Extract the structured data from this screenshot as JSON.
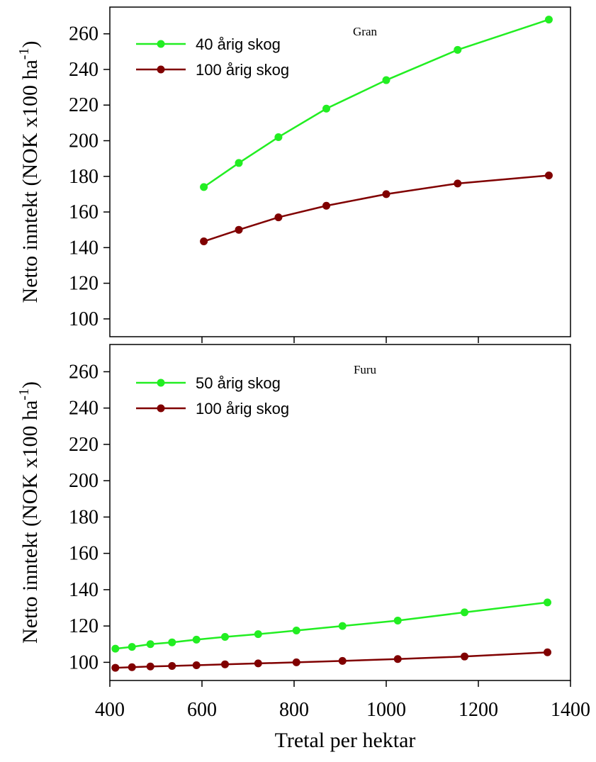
{
  "chart_data": [
    {
      "type": "line",
      "title": "Gran",
      "ylabel": "Netto inntekt (NOK x100 ha",
      "ylabel_sup": "-1",
      "ylabel_close": ")",
      "xlabel": "",
      "xlim": [
        400,
        1400
      ],
      "ylim": [
        90,
        275
      ],
      "yticks": [
        100,
        120,
        140,
        160,
        180,
        200,
        220,
        240,
        260
      ],
      "xticks": [
        600,
        800,
        1000,
        1200
      ],
      "legend": "top-left",
      "series": [
        {
          "name": "40 årig skog",
          "color": "#22ee22",
          "x": [
            604,
            680,
            766,
            870,
            1000,
            1155,
            1353
          ],
          "y": [
            174,
            187.5,
            202,
            218,
            234,
            251,
            268
          ]
        },
        {
          "name": "100 årig skog",
          "color": "#800000",
          "x": [
            604,
            680,
            766,
            870,
            1000,
            1155,
            1353
          ],
          "y": [
            143.5,
            150,
            157,
            163.5,
            170,
            176,
            180.5
          ]
        }
      ]
    },
    {
      "type": "line",
      "title": "Furu",
      "ylabel": "Netto inntekt (NOK x100 ha",
      "ylabel_sup": "-1",
      "ylabel_close": ")",
      "xlabel": "Tretal per hektar",
      "xlim": [
        400,
        1400
      ],
      "ylim": [
        90,
        275
      ],
      "yticks": [
        100,
        120,
        140,
        160,
        180,
        200,
        220,
        240,
        260
      ],
      "xticks": [
        400,
        600,
        800,
        1000,
        1200,
        1400
      ],
      "legend": "top-left",
      "series": [
        {
          "name": "50 årig skog",
          "color": "#22ee22",
          "x": [
            412,
            448,
            488,
            535,
            588,
            650,
            722,
            805,
            905,
            1025,
            1170,
            1350
          ],
          "y": [
            107.5,
            108.5,
            110,
            111,
            112.5,
            114,
            115.5,
            117.5,
            120,
            123,
            127.5,
            133
          ]
        },
        {
          "name": "100 årig skog",
          "color": "#800000",
          "x": [
            412,
            448,
            488,
            535,
            588,
            650,
            722,
            805,
            905,
            1025,
            1170,
            1350
          ],
          "y": [
            97,
            97.3,
            97.7,
            98,
            98.4,
            98.9,
            99.4,
            100,
            100.8,
            101.8,
            103.2,
            105.5
          ]
        }
      ]
    }
  ]
}
